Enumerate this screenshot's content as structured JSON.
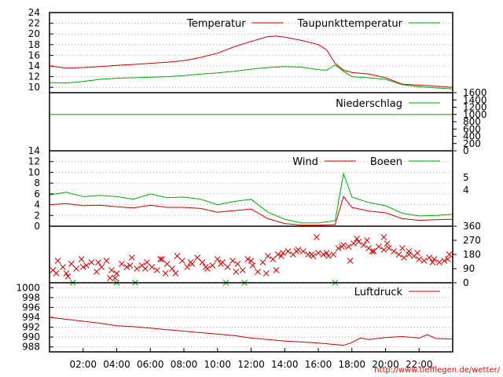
{
  "chart_data": [
    {
      "type": "line",
      "ylim": [
        9,
        24
      ],
      "yticks": [
        10,
        12,
        14,
        16,
        18,
        20,
        22,
        24
      ],
      "grid": true,
      "legend_placement": "top-right",
      "series": [
        {
          "name": "Temperatur",
          "color": "#cc0000",
          "x": [
            0,
            1,
            2,
            3,
            4,
            5,
            6,
            7,
            8,
            9,
            10,
            11,
            12,
            13,
            13.5,
            14,
            15,
            16,
            16.5,
            17,
            17.5,
            18,
            19,
            20,
            21,
            22,
            23,
            24
          ],
          "y": [
            14,
            13.6,
            13.7,
            13.9,
            14.1,
            14.3,
            14.5,
            14.7,
            15.0,
            15.6,
            16.4,
            17.6,
            18.6,
            19.5,
            19.6,
            19.4,
            18.8,
            18.0,
            17.0,
            14.5,
            13.2,
            12.8,
            12.5,
            11.8,
            10.6,
            10.4,
            10.2,
            10.0
          ]
        },
        {
          "name": "Taupunkttemperatur",
          "color": "#00aa00",
          "x": [
            0,
            1,
            2,
            3,
            4,
            5,
            6,
            7,
            8,
            9,
            10,
            11,
            12,
            13,
            14,
            15,
            16,
            16.5,
            17,
            17.5,
            18,
            19,
            20,
            21,
            22,
            23,
            24
          ],
          "y": [
            10.9,
            10.8,
            11.1,
            11.5,
            11.7,
            11.8,
            11.9,
            12.0,
            12.2,
            12.5,
            12.7,
            13.0,
            13.4,
            13.7,
            13.9,
            13.8,
            13.3,
            13.2,
            14.2,
            13.0,
            12.0,
            11.8,
            11.5,
            10.5,
            10.1,
            9.9,
            9.7
          ]
        }
      ]
    },
    {
      "type": "line",
      "ylim": [
        0,
        1600
      ],
      "yticks": [
        0,
        200,
        400,
        600,
        800,
        1000,
        1200,
        1400,
        1600
      ],
      "grid": false,
      "legend_placement": "top-right",
      "series": [
        {
          "name": "Niederschlag",
          "color": "#00aa00",
          "x": [
            0,
            24
          ],
          "y": [
            1000,
            1000
          ]
        }
      ]
    },
    {
      "type": "line",
      "ylim": [
        0,
        14
      ],
      "yticks": [
        0,
        2,
        4,
        6,
        8,
        10,
        12,
        14
      ],
      "right_ticks": [
        "5",
        "4"
      ],
      "grid": true,
      "legend_placement": "top-right",
      "series": [
        {
          "name": "Wind",
          "color": "#cc0000",
          "x": [
            0,
            1,
            2,
            3,
            4,
            5,
            6,
            7,
            8,
            9,
            10,
            11,
            12,
            13,
            14,
            15,
            16,
            17,
            17.5,
            18,
            19,
            20,
            21,
            22,
            23,
            24
          ],
          "y": [
            4.0,
            4.2,
            3.8,
            3.9,
            3.6,
            3.4,
            3.9,
            3.5,
            3.5,
            3.3,
            2.6,
            2.9,
            3.2,
            1.4,
            0.5,
            0.2,
            0.2,
            0.3,
            5.5,
            3.5,
            2.8,
            2.5,
            1.4,
            1.1,
            1.2,
            1.3
          ]
        },
        {
          "name": "Boeen",
          "color": "#00aa00",
          "x": [
            0,
            1,
            2,
            3,
            4,
            5,
            6,
            7,
            8,
            9,
            10,
            11,
            12,
            13,
            14,
            15,
            16,
            17,
            17.5,
            18,
            19,
            20,
            21,
            22,
            23,
            24
          ],
          "y": [
            5.8,
            6.3,
            5.5,
            5.7,
            5.5,
            5.0,
            6.0,
            5.3,
            5.4,
            5.0,
            4.0,
            4.6,
            5.0,
            2.6,
            1.3,
            0.6,
            0.6,
            1.0,
            9.8,
            5.4,
            4.4,
            3.8,
            2.4,
            1.9,
            2.0,
            2.2
          ]
        }
      ]
    },
    {
      "type": "scatter",
      "ylim": [
        0,
        360
      ],
      "yticks": [
        0,
        90,
        180,
        270,
        360
      ],
      "grid": false,
      "series": [
        {
          "name": "",
          "color": "#cc0000",
          "x": [
            0.2,
            0.5,
            0.8,
            1.0,
            1.3,
            1.6,
            1.9,
            2.2,
            2.5,
            2.8,
            3.1,
            3.4,
            3.7,
            4.0,
            4.3,
            4.6,
            4.9,
            5.2,
            5.5,
            5.8,
            6.1,
            6.4,
            6.7,
            7.0,
            7.3,
            7.6,
            7.9,
            8.2,
            8.5,
            8.8,
            9.1,
            9.4,
            9.7,
            10.0,
            10.3,
            10.6,
            10.9,
            11.2,
            11.5,
            11.8,
            12.1,
            12.4,
            12.7,
            13.0,
            13.3,
            13.6,
            13.9,
            14.2,
            14.5,
            14.8,
            15.1,
            15.4,
            15.7,
            16.0,
            16.3,
            16.6,
            16.9,
            17.2,
            17.5,
            17.8,
            18.1,
            18.4,
            18.7,
            19.0,
            19.3,
            19.6,
            19.9,
            20.2,
            20.5,
            20.8,
            21.1,
            21.4,
            21.7,
            22.0,
            22.3,
            22.6,
            22.9,
            23.2,
            23.5,
            23.8,
            0.4,
            1.1,
            2.0,
            2.9,
            3.9,
            4.8,
            5.7,
            6.6,
            7.5,
            8.4,
            9.3,
            10.2,
            11.1,
            12.0,
            12.9,
            13.8,
            14.7,
            15.6,
            16.5,
            17.4,
            18.3,
            19.2,
            20.1,
            21.0,
            21.9,
            22.8,
            23.7,
            3.6,
            6.9,
            13.5,
            15.9,
            17.9,
            18.9,
            19.9,
            21.4
          ],
          "y": [
            80,
            140,
            100,
            60,
            120,
            90,
            150,
            110,
            130,
            70,
            100,
            140,
            80,
            60,
            120,
            100,
            160,
            90,
            110,
            130,
            100,
            80,
            150,
            120,
            90,
            170,
            140,
            100,
            120,
            160,
            130,
            90,
            110,
            150,
            130,
            100,
            140,
            120,
            80,
            150,
            110,
            70,
            130,
            170,
            150,
            180,
            190,
            200,
            180,
            210,
            200,
            180,
            170,
            190,
            180,
            170,
            180,
            220,
            240,
            230,
            250,
            260,
            240,
            220,
            200,
            230,
            210,
            220,
            200,
            180,
            160,
            180,
            170,
            150,
            140,
            160,
            150,
            130,
            140,
            180,
            60,
            40,
            100,
            130,
            30,
            110,
            90,
            150,
            60,
            130,
            100,
            120,
            70,
            140,
            60,
            170,
            200,
            180,
            190,
            230,
            280,
            200,
            250,
            220,
            190,
            130,
            150,
            30,
            60,
            80,
            290,
            140,
            270,
            290,
            200
          ],
          "marker": "x"
        },
        {
          "name": "",
          "color": "#00aa00",
          "x": [
            1.4,
            4.0,
            5.1,
            10.5,
            11.6,
            17.0
          ],
          "y": [
            0,
            0,
            0,
            0,
            0,
            0
          ],
          "marker": "x"
        }
      ]
    },
    {
      "type": "line",
      "ylim": [
        987,
        1001
      ],
      "yticks": [
        988,
        990,
        992,
        994,
        996,
        998,
        1000
      ],
      "grid": true,
      "legend_placement": "top-right",
      "xlabels": [
        "02:00",
        "04:00",
        "06:00",
        "08:00",
        "10:00",
        "12:00",
        "14:00",
        "16:00",
        "18:00",
        "20:00",
        "22:00"
      ],
      "series": [
        {
          "name": "Luftdruck",
          "color": "#cc0000",
          "x": [
            0,
            1,
            2,
            3,
            4,
            5,
            6,
            7,
            8,
            9,
            10,
            11,
            12,
            13,
            14,
            15,
            16,
            17,
            17.5,
            18,
            18.5,
            19,
            20,
            21,
            22,
            22.5,
            23,
            24
          ],
          "y": [
            994.0,
            993.6,
            993.2,
            992.8,
            992.3,
            992.1,
            991.8,
            991.5,
            991.2,
            990.9,
            990.6,
            990.3,
            989.8,
            989.5,
            989.2,
            989.0,
            988.8,
            988.5,
            988.3,
            988.9,
            989.8,
            989.5,
            989.9,
            990.1,
            989.8,
            990.5,
            989.7,
            989.6
          ]
        }
      ]
    }
  ],
  "footer": {
    "credit": "http://www.tiefflegen.de/wetter/"
  }
}
